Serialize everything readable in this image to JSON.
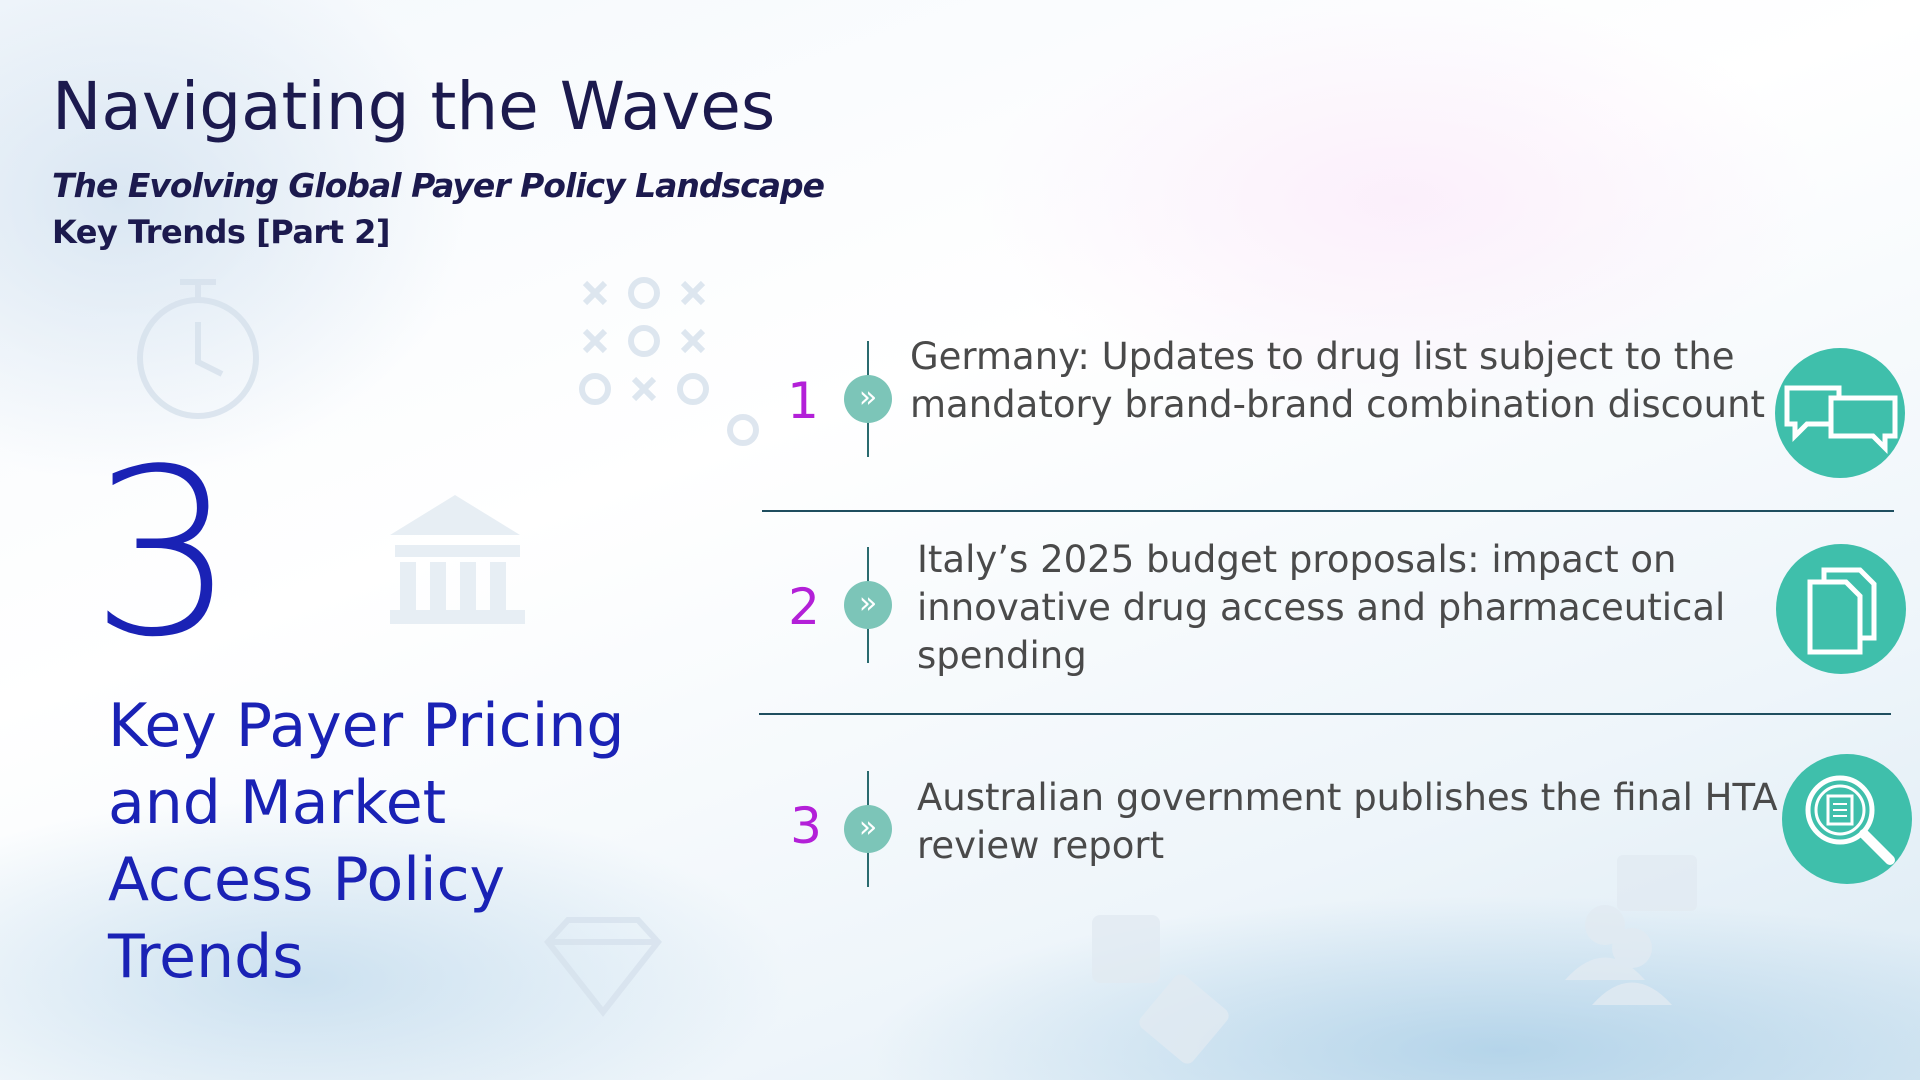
{
  "header": {
    "title": "Navigating the Waves",
    "subtitle": "The Evolving Global Payer Policy Landscape",
    "tagline": "Key Trends [Part 2]"
  },
  "summary": {
    "number": "3",
    "label": "Key Payer Pricing and Market Access Policy Trends"
  },
  "items": [
    {
      "number": "1",
      "text": "Germany: Updates to drug list subject to the mandatory brand-brand combination discount"
    },
    {
      "number": "2",
      "text": "Italy’s 2025 budget proposals: impact on innovative drug access and pharmaceutical spending"
    },
    {
      "number": "3",
      "text": "Australian government publishes the final HTA review report"
    }
  ]
}
